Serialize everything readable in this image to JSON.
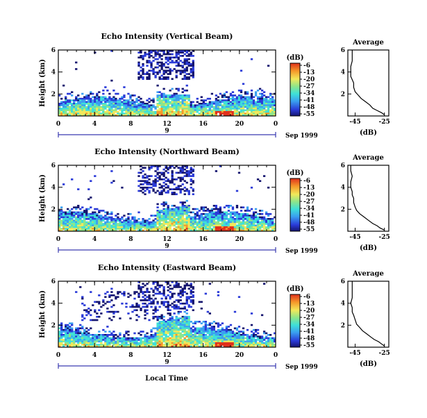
{
  "figure": {
    "xlabel": "Local Time",
    "date_label": "Sep 1999",
    "colorbar_unit": "(dB)",
    "avg_title": "Average",
    "avg_xlabel": "(dB)",
    "ylabel": "Height (km)"
  },
  "chart_data": [
    {
      "type": "heatmap",
      "title": "Echo Intensity (Vertical Beam)",
      "xlabel": "",
      "ylabel": "Height (km)",
      "x_ticks": [
        "0",
        "4",
        "8",
        "12",
        "16",
        "20",
        "0"
      ],
      "x_range_hours": [
        0,
        24
      ],
      "day_label": "9",
      "y_ticks": [
        "2",
        "4",
        "6"
      ],
      "ylim_km": [
        0,
        6
      ],
      "colorbar": {
        "unit": "(dB)",
        "ticks": [
          "-6",
          "-13",
          "-20",
          "-27",
          "-34",
          "-41",
          "-48",
          "-55"
        ],
        "range_db": [
          -55,
          -6
        ]
      },
      "seed": 11
    },
    {
      "type": "line",
      "title": "Average",
      "xlabel": "(dB)",
      "x_ticks": [
        "-45",
        "-25"
      ],
      "y_ticks": [
        "2",
        "4",
        "6"
      ],
      "ylim_km": [
        0,
        6
      ],
      "xlim_db": [
        -50,
        -22
      ],
      "series": [
        {
          "points": [
            [
              -47,
              6.0
            ],
            [
              -47,
              5.5
            ],
            [
              -47,
              5.0
            ],
            [
              -48,
              4.5
            ],
            [
              -48,
              4.0
            ],
            [
              -48,
              3.6
            ],
            [
              -47,
              3.3
            ],
            [
              -46,
              3.0
            ],
            [
              -46,
              2.6
            ],
            [
              -45,
              2.2
            ],
            [
              -43,
              1.9
            ],
            [
              -41,
              1.6
            ],
            [
              -38,
              1.3
            ],
            [
              -35,
              1.0
            ],
            [
              -33,
              0.7
            ],
            [
              -30,
              0.5
            ],
            [
              -27,
              0.3
            ],
            [
              -25,
              0.1
            ]
          ]
        }
      ]
    },
    {
      "type": "heatmap",
      "title": "Echo Intensity (Northward Beam)",
      "xlabel": "",
      "ylabel": "Height (km)",
      "x_ticks": [
        "0",
        "4",
        "8",
        "12",
        "16",
        "20",
        "0"
      ],
      "x_range_hours": [
        0,
        24
      ],
      "day_label": "9",
      "y_ticks": [
        "2",
        "4",
        "6"
      ],
      "ylim_km": [
        0,
        6
      ],
      "colorbar": {
        "unit": "(dB)",
        "ticks": [
          "-6",
          "-13",
          "-20",
          "-27",
          "-34",
          "-41",
          "-48",
          "-55"
        ],
        "range_db": [
          -55,
          -6
        ]
      },
      "seed": 23
    },
    {
      "type": "line",
      "title": "Average",
      "xlabel": "(dB)",
      "x_ticks": [
        "-45",
        "-25"
      ],
      "y_ticks": [
        "2",
        "4",
        "6"
      ],
      "ylim_km": [
        0,
        6
      ],
      "xlim_db": [
        -50,
        -22
      ],
      "series": [
        {
          "points": [
            [
              -48,
              6.0
            ],
            [
              -48,
              5.5
            ],
            [
              -47,
              5.0
            ],
            [
              -48,
              4.5
            ],
            [
              -48,
              4.0
            ],
            [
              -47,
              3.6
            ],
            [
              -47,
              3.3
            ],
            [
              -46,
              3.0
            ],
            [
              -46,
              2.6
            ],
            [
              -45,
              2.2
            ],
            [
              -44,
              1.9
            ],
            [
              -42,
              1.6
            ],
            [
              -39,
              1.3
            ],
            [
              -36,
              1.0
            ],
            [
              -33,
              0.7
            ],
            [
              -30,
              0.5
            ],
            [
              -28,
              0.3
            ],
            [
              -25,
              0.1
            ]
          ]
        }
      ]
    },
    {
      "type": "heatmap",
      "title": "Echo Intensity (Eastward Beam)",
      "xlabel": "Local Time",
      "ylabel": "Height (km)",
      "x_ticks": [
        "0",
        "4",
        "8",
        "12",
        "16",
        "20",
        "0"
      ],
      "x_range_hours": [
        0,
        24
      ],
      "day_label": "9",
      "y_ticks": [
        "2",
        "4",
        "6"
      ],
      "ylim_km": [
        0,
        6
      ],
      "colorbar": {
        "unit": "(dB)",
        "ticks": [
          "-6",
          "-13",
          "-20",
          "-27",
          "-34",
          "-41",
          "-48",
          "-55"
        ],
        "range_db": [
          -55,
          -6
        ]
      },
      "seed": 37
    },
    {
      "type": "line",
      "title": "Average",
      "xlabel": "(dB)",
      "x_ticks": [
        "-45",
        "-25"
      ],
      "y_ticks": [
        "2",
        "4",
        "6"
      ],
      "ylim_km": [
        0,
        6
      ],
      "xlim_db": [
        -50,
        -22
      ],
      "series": [
        {
          "points": [
            [
              -47,
              6.0
            ],
            [
              -47,
              5.5
            ],
            [
              -47,
              5.0
            ],
            [
              -47,
              4.5
            ],
            [
              -48,
              4.0
            ],
            [
              -47,
              3.6
            ],
            [
              -47,
              3.2
            ],
            [
              -46,
              2.9
            ],
            [
              -45,
              2.5
            ],
            [
              -44,
              2.1
            ],
            [
              -42,
              1.8
            ],
            [
              -40,
              1.5
            ],
            [
              -37,
              1.2
            ],
            [
              -34,
              0.9
            ],
            [
              -32,
              0.7
            ],
            [
              -29,
              0.5
            ],
            [
              -27,
              0.3
            ],
            [
              -25,
              0.1
            ]
          ]
        }
      ]
    }
  ]
}
